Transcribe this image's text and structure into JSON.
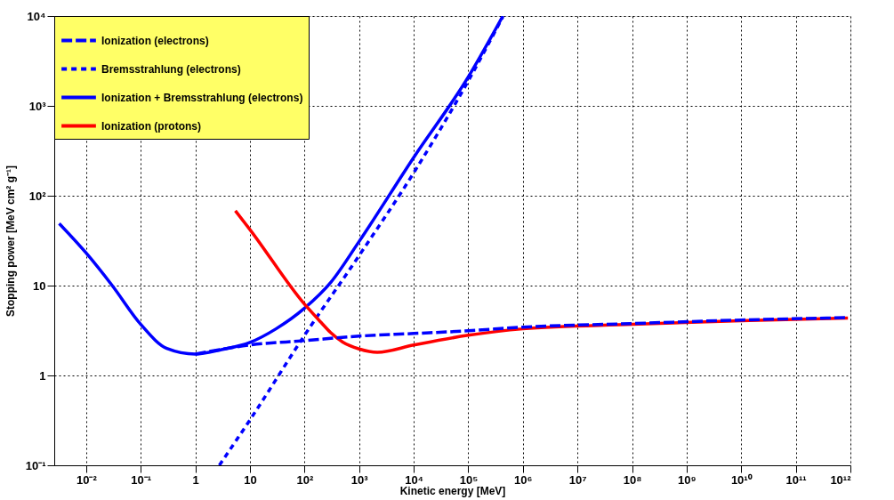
{
  "chart_data": {
    "type": "line",
    "xlabel": "Kinetic energy [MeV]",
    "ylabel": "Stopping power [MeV cm² g⁻¹]",
    "log": "xy",
    "grid": true,
    "legend": "top left",
    "xlim": [
      0.0026,
      1000000000000.0
    ],
    "ylim": [
      0.1,
      10000
    ],
    "xticks": [
      {
        "value": 0.01,
        "label": "10⁻²"
      },
      {
        "value": 0.1,
        "label": "10⁻¹"
      },
      1,
      10,
      {
        "value": 100,
        "label": "10²"
      },
      {
        "value": 1000,
        "label": "10³"
      },
      {
        "value": 10000,
        "label": "10⁴"
      },
      {
        "value": 100000,
        "label": "10⁵"
      },
      {
        "value": 1000000,
        "label": "10⁶"
      },
      {
        "value": 10000000,
        "label": "10⁷"
      },
      {
        "value": 100000000,
        "label": "10⁸"
      },
      {
        "value": 1000000000,
        "label": "10⁹"
      },
      {
        "value": 10000000000,
        "label": "10¹⁰"
      },
      {
        "value": 100000000000,
        "label": "10¹¹"
      },
      {
        "value": 1000000000000,
        "label": "10¹²"
      }
    ],
    "yticks": [
      {
        "value": 0.1,
        "label": "10⁻¹"
      },
      1,
      10,
      {
        "value": 100,
        "label": "10²"
      },
      {
        "value": 1000,
        "label": "10³"
      },
      {
        "value": 10000,
        "label": "10⁴"
      }
    ],
    "series": [
      {
        "name": "Ionization (electrons)",
        "color": "#0000ff",
        "line_style": "dashed",
        "x": [
          1,
          10,
          100,
          1000,
          10000,
          100000,
          1000000,
          100000000,
          10000000000,
          900000000000
        ],
        "values": [
          1.73,
          2.18,
          2.44,
          2.74,
          2.93,
          3.14,
          3.45,
          3.78,
          4.14,
          4.4
        ]
      },
      {
        "name": "Bremsstrahlung (electrons)",
        "color": "#0000ff",
        "line_style": "dotted",
        "x": [
          2.75,
          10,
          100,
          1000,
          10000,
          100000,
          430000
        ],
        "values": [
          0.1,
          0.32,
          2.8,
          21.6,
          180,
          1900,
          9800
        ]
      },
      {
        "name": "Ionization + Bremsstrahlung (electrons)",
        "color": "#0000ff",
        "line_style": "solid",
        "x": [
          0.0032,
          0.01,
          0.03,
          0.1,
          0.3,
          1,
          3,
          10,
          30,
          100,
          300,
          1000,
          10000,
          100000,
          430000
        ],
        "values": [
          49,
          23,
          10,
          3.7,
          2.0,
          1.73,
          1.94,
          2.33,
          3.3,
          5.6,
          10.8,
          31,
          267,
          2100,
          10000
        ]
      },
      {
        "name": "Ionization (protons)",
        "color": "#ff0000",
        "line_style": "solid",
        "x": [
          5.4,
          10,
          100,
          200,
          300,
          500,
          1000,
          2150,
          10000,
          100000,
          1000000,
          100000000,
          10000000000,
          900000000000
        ],
        "values": [
          68,
          42,
          6.2,
          3.9,
          3.0,
          2.35,
          1.97,
          1.81,
          2.18,
          2.8,
          3.3,
          3.7,
          4.07,
          4.35
        ]
      }
    ]
  }
}
